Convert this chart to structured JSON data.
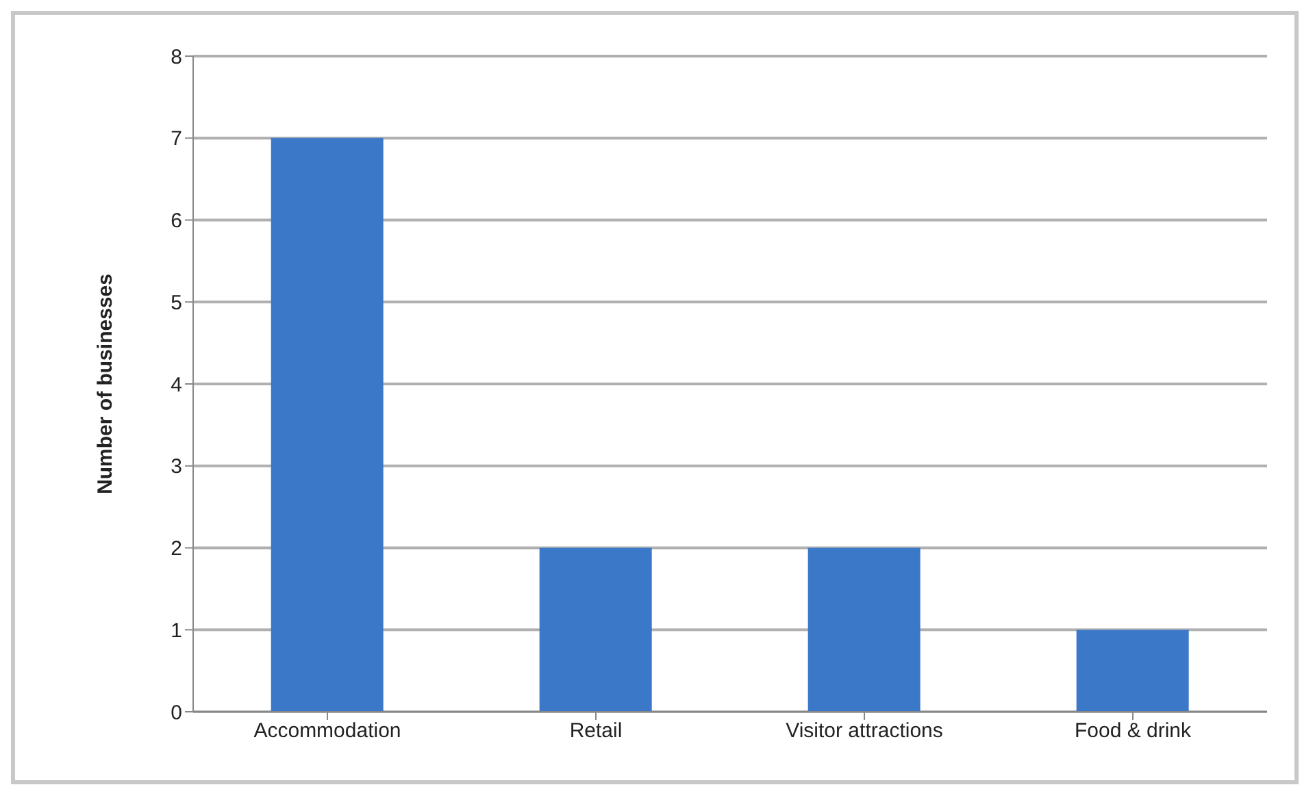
{
  "chart_data": {
    "type": "bar",
    "ylabel": "Number of businesses",
    "categories": [
      "Accommodation",
      "Retail",
      "Visitor attractions",
      "Food & drink"
    ],
    "values": [
      7,
      2,
      2,
      1
    ],
    "color": "#3b78c8",
    "ylim": [
      0,
      8
    ],
    "yticks": [
      0,
      1,
      2,
      3,
      4,
      5,
      6,
      7,
      8
    ],
    "grid": "y"
  }
}
